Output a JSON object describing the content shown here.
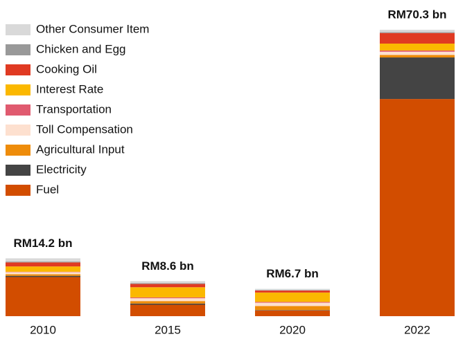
{
  "chart_data": {
    "type": "stacked_bar",
    "categories": [
      "2010",
      "2015",
      "2020",
      "2022"
    ],
    "series": [
      {
        "name": "Other Consumer Item",
        "color": "#d9d9d9",
        "values": [
          0.8,
          0.5,
          0.3,
          0.6
        ]
      },
      {
        "name": "Chicken and Egg",
        "color": "#999999",
        "values": [
          0.2,
          0.2,
          0.1,
          0.2
        ]
      },
      {
        "name": "Cooking Oil",
        "color": "#e03a22",
        "values": [
          1.0,
          0.8,
          0.5,
          2.6
        ]
      },
      {
        "name": "Interest Rate",
        "color": "#fbb800",
        "values": [
          1.3,
          2.5,
          2.3,
          1.7
        ]
      },
      {
        "name": "Transportation",
        "color": "#e05a6f",
        "values": [
          0.1,
          0.2,
          0.2,
          0.3
        ]
      },
      {
        "name": "Toll Compensation",
        "color": "#fde0cf",
        "values": [
          0.5,
          0.7,
          0.8,
          0.8
        ]
      },
      {
        "name": "Agricultural Input",
        "color": "#ee8c0a",
        "values": [
          0.4,
          0.6,
          1.0,
          0.6
        ]
      },
      {
        "name": "Electricity",
        "color": "#444444",
        "values": [
          0.3,
          0.3,
          0.1,
          10.2
        ]
      },
      {
        "name": "Fuel",
        "color": "#d24d00",
        "values": [
          9.6,
          2.8,
          1.4,
          53.3
        ]
      }
    ],
    "totals": [
      14.2,
      8.6,
      6.7,
      70.3
    ],
    "total_labels": [
      "RM14.2 bn",
      "RM8.6 bn",
      "RM6.7 bn",
      "RM70.3 bn"
    ],
    "ylim": [
      0,
      70.3
    ],
    "legend": "top-left"
  }
}
